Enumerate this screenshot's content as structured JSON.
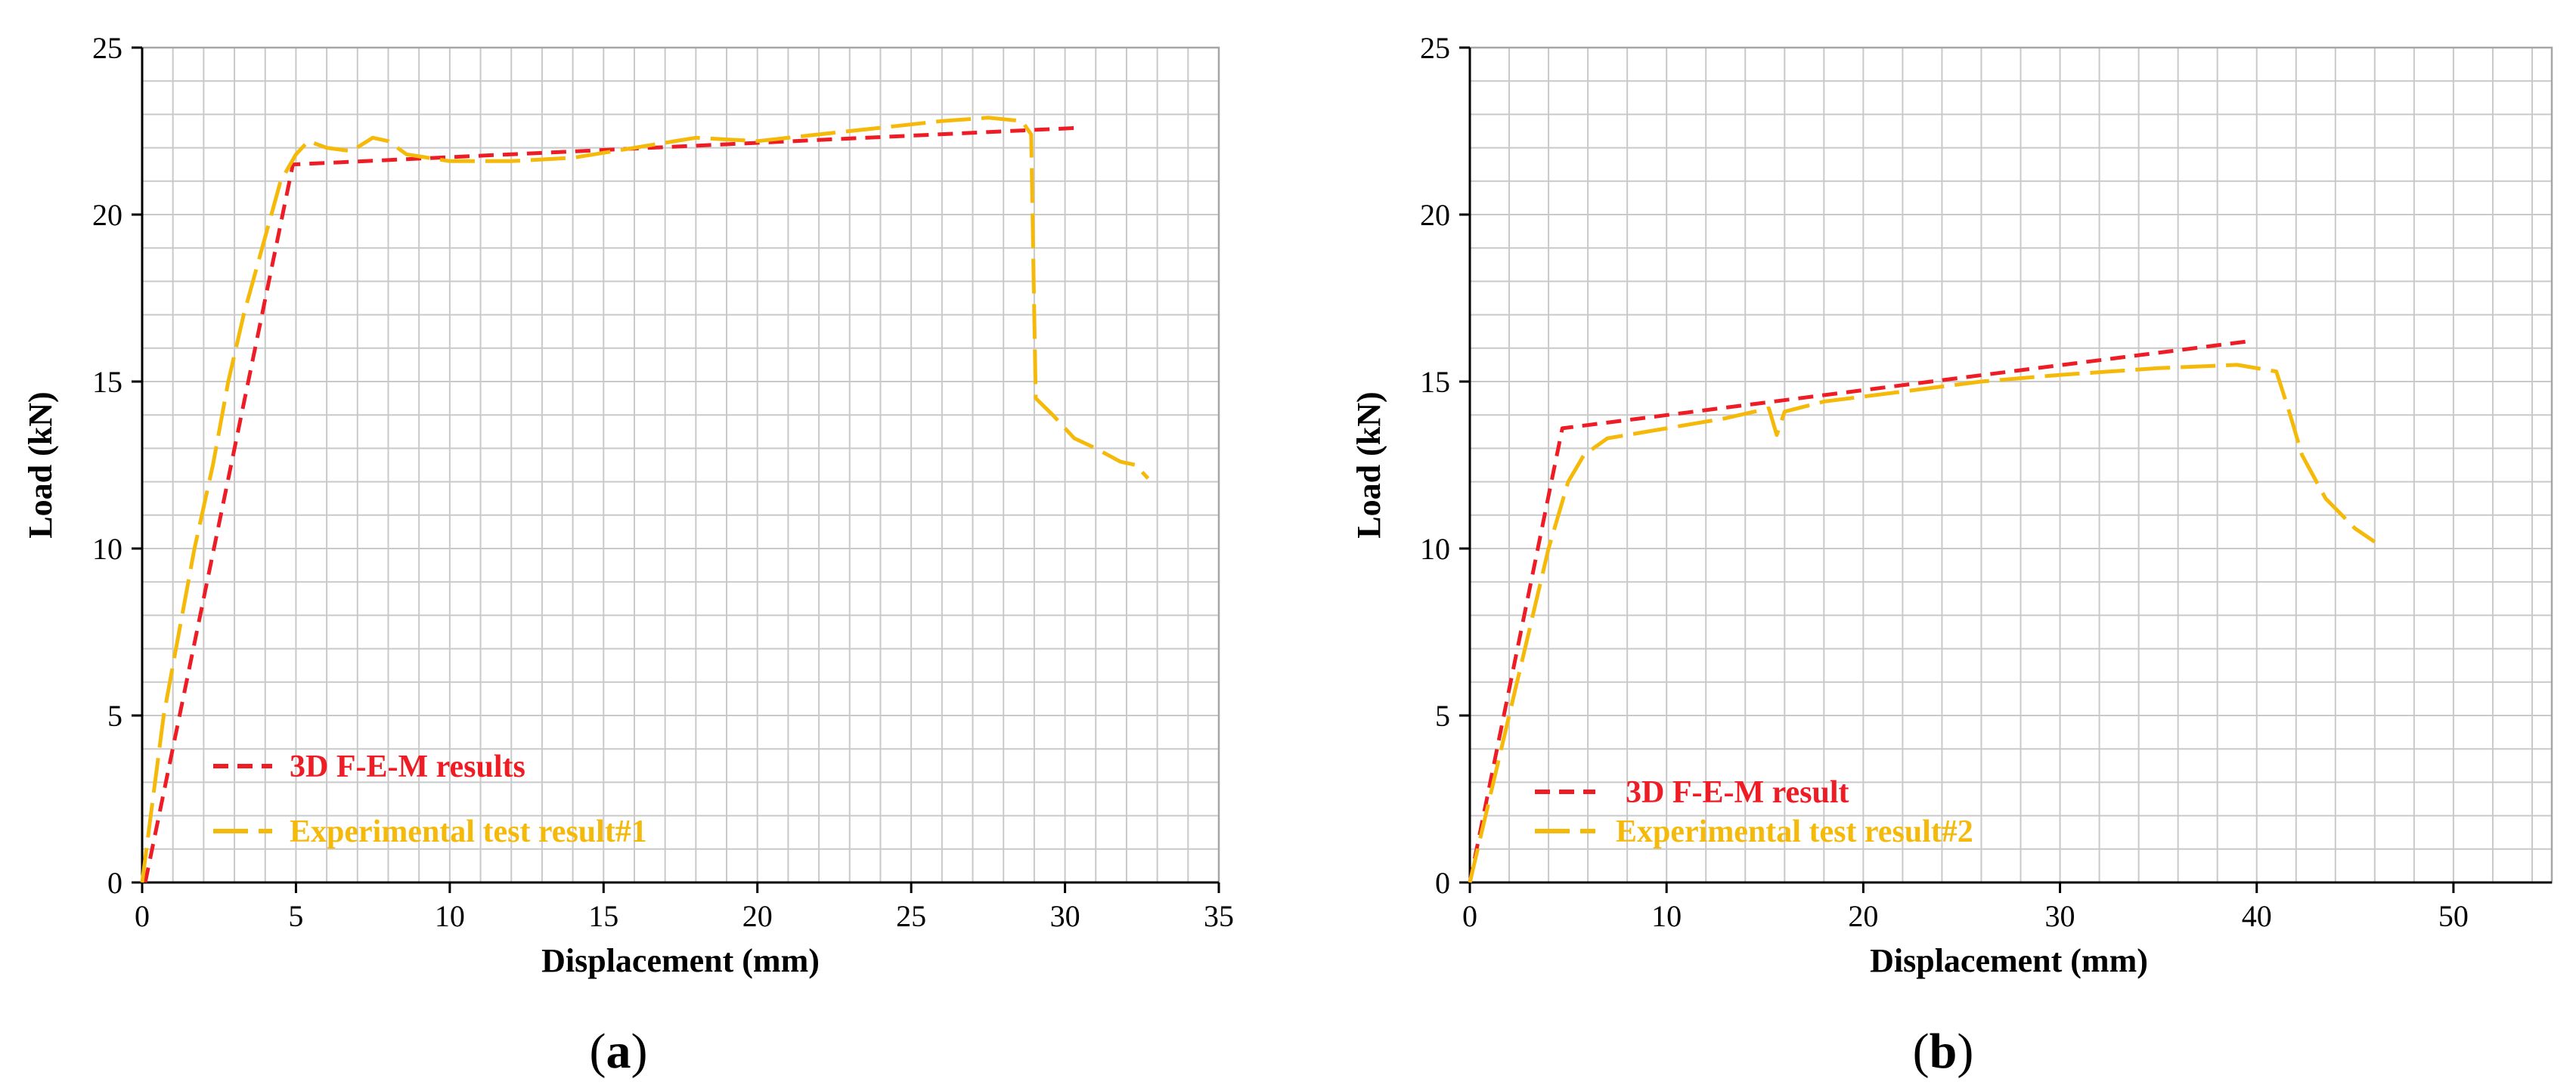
{
  "chart_data": [
    {
      "type": "line",
      "panel_label": "a",
      "xlabel": "Displacement (mm)",
      "ylabel": "Load (kN)",
      "xlim": [
        0,
        35
      ],
      "ylim": [
        0,
        25
      ],
      "x_major_ticks": [
        0,
        5,
        10,
        15,
        20,
        25,
        30,
        35
      ],
      "y_major_ticks": [
        0,
        5,
        10,
        15,
        20,
        25
      ],
      "x_tick_labels": [
        "0",
        "5",
        "10",
        "15",
        "20",
        "25",
        "30",
        "35"
      ],
      "y_tick_labels": [
        "0",
        "5",
        "10",
        "15",
        "20",
        "25"
      ],
      "minor_step_x": 1,
      "minor_step_y": 1,
      "grid": true,
      "legend_position": "bottom-left",
      "series": [
        {
          "name": "3D F-E-M results",
          "color": "#ee1c25",
          "style": "short-dash",
          "points": [
            [
              0.1,
              0.0
            ],
            [
              4.9,
              21.5
            ],
            [
              30.5,
              22.6
            ]
          ]
        },
        {
          "name": "Experimental test result#1",
          "color": "#f5b90a",
          "style": "long-dash",
          "points": [
            [
              0.0,
              0.0
            ],
            [
              0.35,
              2.5
            ],
            [
              0.7,
              5.0
            ],
            [
              1.2,
              7.5
            ],
            [
              1.7,
              10.0
            ],
            [
              2.3,
              12.5
            ],
            [
              2.8,
              15.0
            ],
            [
              3.3,
              17.0
            ],
            [
              3.9,
              19.0
            ],
            [
              4.5,
              21.0
            ],
            [
              5.0,
              21.8
            ],
            [
              5.4,
              22.2
            ],
            [
              6.0,
              22.0
            ],
            [
              6.8,
              21.9
            ],
            [
              7.5,
              22.3
            ],
            [
              8.0,
              22.2
            ],
            [
              8.6,
              21.8
            ],
            [
              10,
              21.6
            ],
            [
              12,
              21.6
            ],
            [
              14,
              21.7
            ],
            [
              16,
              22.0
            ],
            [
              18,
              22.3
            ],
            [
              20,
              22.2
            ],
            [
              22,
              22.4
            ],
            [
              24,
              22.6
            ],
            [
              26,
              22.8
            ],
            [
              27.5,
              22.9
            ],
            [
              28.6,
              22.8
            ],
            [
              28.9,
              22.4
            ],
            [
              29.0,
              17.0
            ],
            [
              29.05,
              14.5
            ],
            [
              29.6,
              14.0
            ],
            [
              30.3,
              13.3
            ],
            [
              31.0,
              13.0
            ],
            [
              31.8,
              12.6
            ],
            [
              32.3,
              12.5
            ],
            [
              32.7,
              12.1
            ]
          ]
        }
      ]
    },
    {
      "type": "line",
      "panel_label": "b",
      "xlabel": "Displacement (mm)",
      "ylabel": "Load (kN)",
      "xlim": [
        0,
        55
      ],
      "ylim": [
        0,
        25
      ],
      "x_major_ticks": [
        0,
        10,
        20,
        30,
        40,
        50
      ],
      "y_major_ticks": [
        0,
        5,
        10,
        15,
        20,
        25
      ],
      "x_tick_labels": [
        "0",
        "10",
        "20",
        "30",
        "40",
        "50"
      ],
      "y_tick_labels": [
        "0",
        "5",
        "10",
        "15",
        "20",
        "25"
      ],
      "minor_step_x": 2,
      "minor_step_y": 1,
      "grid": true,
      "legend_position": "bottom-left",
      "series": [
        {
          "name": "3D F-E-M result",
          "color": "#ee1c25",
          "style": "short-dash",
          "points": [
            [
              0.0,
              0.0
            ],
            [
              4.7,
              13.6
            ],
            [
              39.5,
              16.2
            ]
          ]
        },
        {
          "name": "Experimental test result#2",
          "color": "#f5b90a",
          "style": "long-dash",
          "points": [
            [
              0.0,
              0.0
            ],
            [
              1.0,
              2.5
            ],
            [
              2.0,
              5.0
            ],
            [
              3.0,
              7.5
            ],
            [
              4.0,
              10.0
            ],
            [
              5.0,
              12.0
            ],
            [
              5.8,
              12.8
            ],
            [
              7.0,
              13.3
            ],
            [
              10,
              13.6
            ],
            [
              13,
              13.9
            ],
            [
              15.2,
              14.2
            ],
            [
              15.6,
              13.4
            ],
            [
              16.0,
              14.1
            ],
            [
              18,
              14.4
            ],
            [
              22,
              14.7
            ],
            [
              26,
              15.0
            ],
            [
              30,
              15.2
            ],
            [
              35,
              15.4
            ],
            [
              39,
              15.5
            ],
            [
              41,
              15.3
            ],
            [
              41.7,
              14.0
            ],
            [
              42.3,
              12.8
            ],
            [
              43.5,
              11.5
            ],
            [
              45,
              10.6
            ],
            [
              46,
              10.2
            ]
          ]
        }
      ]
    }
  ]
}
